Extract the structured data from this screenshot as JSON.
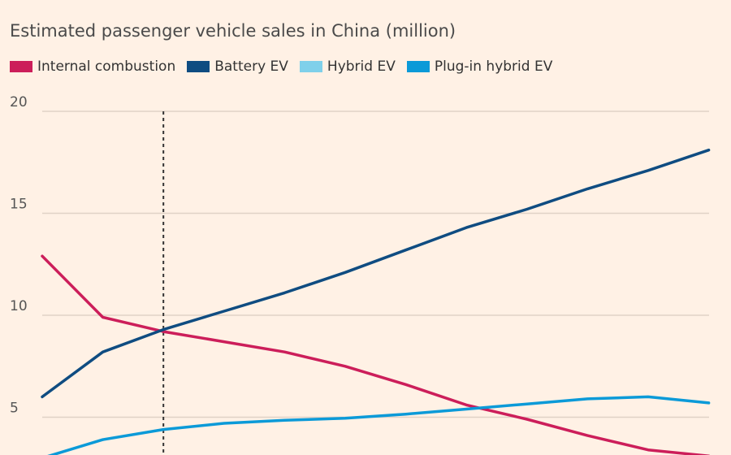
{
  "chart_data": {
    "type": "line",
    "title": "Estimated passenger vehicle sales in China (million)",
    "x": [
      0,
      1,
      2,
      3,
      4,
      5,
      6,
      7,
      8,
      9,
      10,
      11
    ],
    "ylim": [
      3,
      20
    ],
    "yticks": [
      "20",
      "15",
      "10",
      "5"
    ],
    "ytick_values": [
      20,
      15,
      10,
      5
    ],
    "marker_x": 2,
    "series": [
      {
        "name": "Internal combustion",
        "color": "#CC1E5A",
        "values": [
          12.9,
          9.9,
          9.2,
          8.7,
          8.2,
          7.5,
          6.6,
          5.6,
          4.9,
          4.1,
          3.4,
          3.1
        ]
      },
      {
        "name": "Battery EV",
        "color": "#0F4C81",
        "values": [
          6.0,
          8.2,
          9.3,
          10.2,
          11.1,
          12.1,
          13.2,
          14.3,
          15.2,
          16.2,
          17.1,
          18.1
        ]
      },
      {
        "name": "Hybrid EV",
        "color": "#7FD0EA",
        "values": [
          null,
          null,
          null,
          null,
          null,
          null,
          null,
          null,
          null,
          null,
          null,
          null
        ]
      },
      {
        "name": "Plug-in hybrid EV",
        "color": "#0B9AD8",
        "values": [
          3.0,
          3.9,
          4.4,
          4.7,
          4.85,
          4.95,
          5.15,
          5.4,
          5.65,
          5.9,
          6.0,
          5.7
        ]
      }
    ]
  }
}
